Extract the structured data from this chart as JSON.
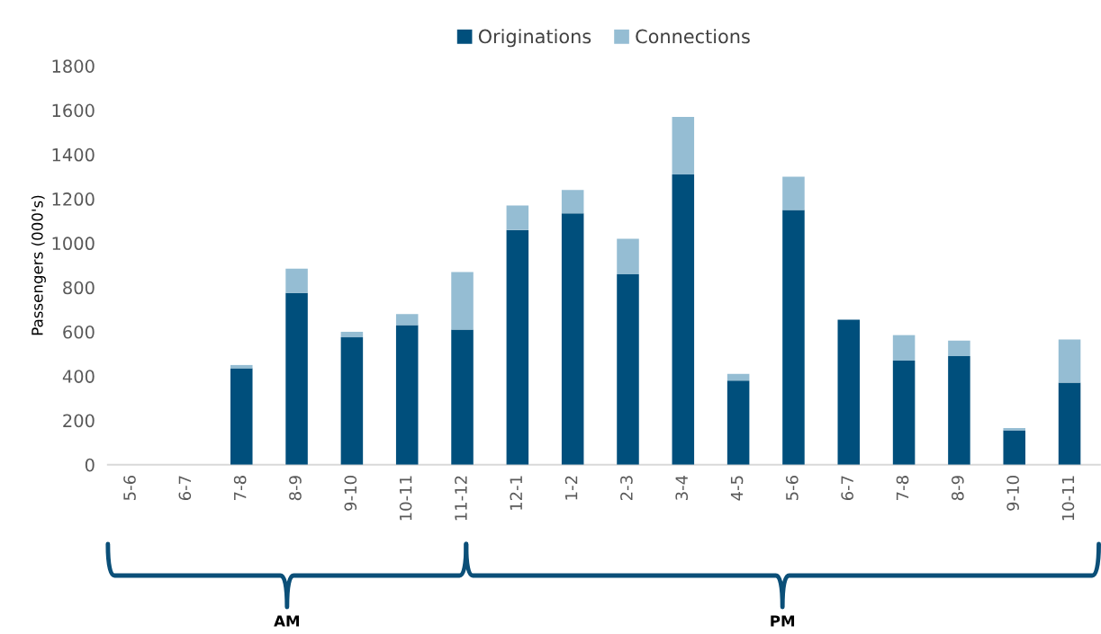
{
  "chart_data": {
    "type": "bar",
    "stacked": true,
    "ylabel": "Passengers (000's)",
    "categories": [
      "5-6",
      "6-7",
      "7-8",
      "8-9",
      "9-10",
      "10-11",
      "11-12",
      "12-1",
      "1-2",
      "2-3",
      "3-4",
      "4-5",
      "5-6",
      "6-7",
      "7-8",
      "8-9",
      "9-10",
      "10-11"
    ],
    "series": [
      {
        "name": "Originations",
        "color": "#004f7c",
        "values": [
          0,
          0,
          435,
          775,
          575,
          630,
          610,
          1060,
          1135,
          860,
          1310,
          380,
          1150,
          655,
          470,
          490,
          155,
          370
        ]
      },
      {
        "name": "Connections",
        "color": "#95bdd3",
        "values": [
          0,
          0,
          15,
          110,
          25,
          50,
          260,
          110,
          105,
          160,
          260,
          30,
          150,
          0,
          115,
          70,
          10,
          195
        ]
      }
    ],
    "ylim": [
      0,
      1800
    ],
    "yticks": [
      0,
      200,
      400,
      600,
      800,
      1000,
      1200,
      1400,
      1600,
      1800
    ],
    "grid": false,
    "legend": "top",
    "annotations": [
      "AM",
      "PM"
    ]
  }
}
